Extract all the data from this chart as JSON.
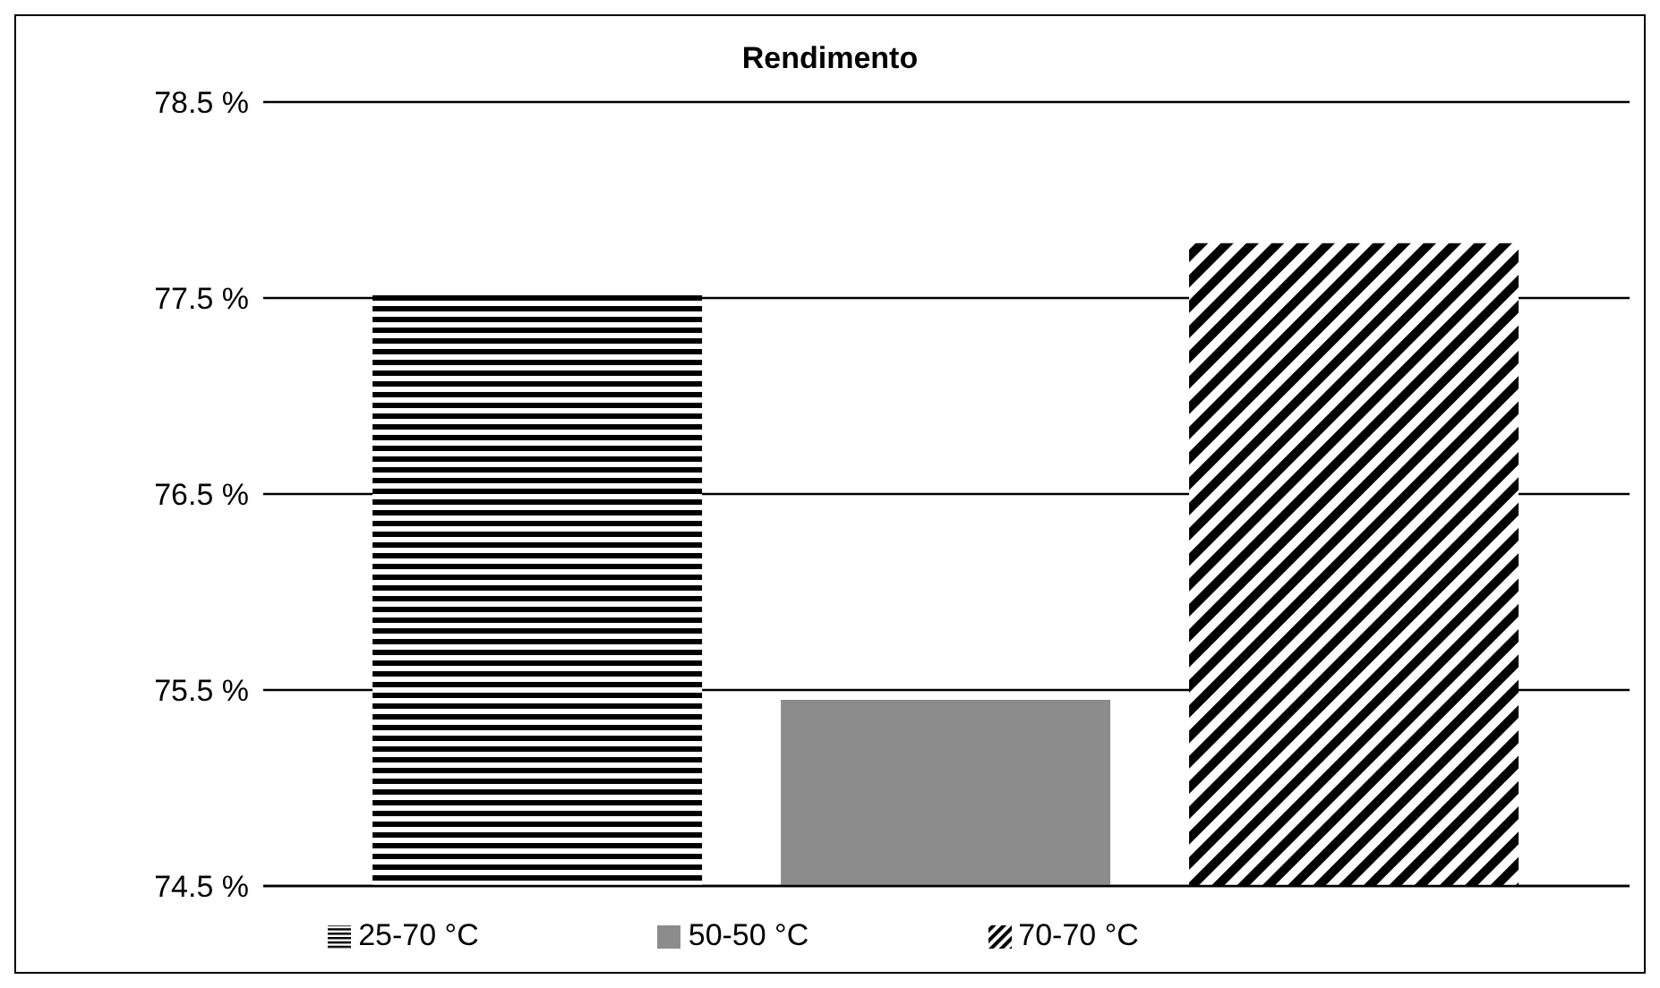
{
  "chart_data": {
    "type": "bar",
    "title": "Rendimento",
    "categories": [
      null
    ],
    "series": [
      {
        "name": "25-70 °C",
        "color": "#000000",
        "values": [
          77.52
        ]
      },
      {
        "name": "50-50 °C",
        "color": "#8c8c8c",
        "values": [
          75.45
        ]
      },
      {
        "name": "70-70 °C",
        "color": "#000000",
        "values": [
          77.78
        ]
      }
    ],
    "ylim": [
      74.5,
      78.5
    ],
    "yticks": [
      {
        "value": 74.5,
        "label": "74.5 %"
      },
      {
        "value": 75.5,
        "label": "75.5 %"
      },
      {
        "value": 76.5,
        "label": "76.5 %"
      },
      {
        "value": 77.5,
        "label": "77.5 %"
      },
      {
        "value": 78.5,
        "label": "78.5 %"
      }
    ],
    "grid": "y",
    "legend": "bottom"
  }
}
